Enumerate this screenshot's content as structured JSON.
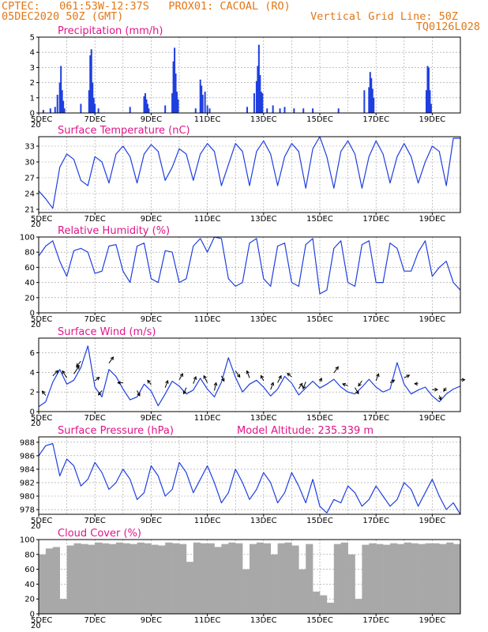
{
  "header": {
    "source_line": "CPTEC:   061:53W-12:37S   PROX01: CACOAL (RO)",
    "date_line": "05DEC2020 50Z (GMT)",
    "grid_note": "Vertical Grid Line: 50Z",
    "code": "TQ0126L028"
  },
  "colors": {
    "header": "#e07818",
    "title": "#e0168a",
    "series": "#1f3fe0",
    "cloud": "#a8a8a8",
    "grid": "#9a9a9a"
  },
  "x_axis": {
    "start_date": "05DEC",
    "end_date": "20DEC",
    "tick_labels": [
      "5DEC",
      "7DEC",
      "9DEC",
      "11DEC",
      "13DEC",
      "15DEC",
      "17DEC",
      "19DEC"
    ],
    "year_fragment": "20"
  },
  "chart_data": [
    {
      "id": "precip",
      "type": "bar",
      "title": "Precipitation (mm/h)",
      "ylim": [
        0,
        5
      ],
      "yticks": [
        "0",
        "1",
        "2",
        "3",
        "4",
        "5"
      ],
      "x": [
        "05DEC 04Z",
        "05DEC 10Z",
        "05DEC 14Z",
        "05DEC 16Z",
        "05DEC 18Z",
        "05DEC 19Z",
        "05DEC 20Z",
        "05DEC 21Z",
        "05DEC 22Z",
        "06DEC 12Z",
        "06DEC 19Z",
        "06DEC 20Z",
        "06DEC 21Z",
        "06DEC 22Z",
        "06DEC 23Z",
        "07DEC 00Z",
        "07DEC 03Z",
        "08DEC 06Z",
        "08DEC 18Z",
        "08DEC 19Z",
        "08DEC 20Z",
        "08DEC 21Z",
        "08DEC 22Z",
        "09DEC 12Z",
        "09DEC 18Z",
        "09DEC 19Z",
        "09DEC 20Z",
        "09DEC 21Z",
        "09DEC 22Z",
        "09DEC 23Z",
        "10DEC 14Z",
        "10DEC 18Z",
        "10DEC 19Z",
        "10DEC 20Z",
        "10DEC 22Z",
        "11DEC 00Z",
        "11DEC 02Z",
        "12DEC 10Z",
        "12DEC 16Z",
        "12DEC 18Z",
        "12DEC 19Z",
        "12DEC 20Z",
        "12DEC 21Z",
        "12DEC 22Z",
        "12DEC 23Z",
        "13DEC 03Z",
        "13DEC 08Z",
        "13DEC 14Z",
        "13DEC 18Z",
        "14DEC 02Z",
        "14DEC 10Z",
        "14DEC 18Z",
        "15DEC 16Z",
        "16DEC 14Z",
        "16DEC 18Z",
        "16DEC 19Z",
        "16DEC 20Z",
        "16DEC 21Z",
        "16DEC 22Z",
        "18DEC 19Z",
        "18DEC 20Z",
        "18DEC 21Z",
        "18DEC 22Z",
        "18DEC 23Z"
      ],
      "values": [
        0.2,
        0.3,
        0.4,
        1.2,
        2.0,
        3.1,
        1.5,
        0.8,
        0.3,
        0.6,
        1.5,
        3.8,
        4.2,
        2.0,
        1.0,
        0.6,
        0.3,
        0.4,
        1.1,
        1.3,
        0.9,
        0.6,
        0.3,
        0.5,
        1.3,
        3.4,
        4.3,
        2.6,
        1.4,
        0.9,
        0.3,
        2.2,
        1.8,
        1.2,
        1.4,
        0.5,
        0.3,
        0.4,
        1.3,
        2.1,
        3.1,
        4.5,
        2.5,
        1.4,
        1.3,
        0.3,
        0.5,
        0.3,
        0.4,
        0.3,
        0.3,
        0.3,
        0.3,
        1.5,
        1.7,
        2.7,
        2.3,
        1.6,
        1.0,
        1.5,
        3.1,
        3.0,
        1.5,
        0.6
      ]
    },
    {
      "id": "temp",
      "type": "line",
      "title": "Surface Temperature (nC)",
      "ylim": [
        20.4,
        34.8
      ],
      "yticks": [
        "21",
        "24",
        "27",
        "30",
        "33"
      ],
      "x": [
        "05DEC 00Z",
        "05DEC 06Z",
        "05DEC 12Z",
        "05DEC 18Z",
        "06DEC 00Z",
        "06DEC 06Z",
        "06DEC 12Z",
        "06DEC 18Z",
        "07DEC 00Z",
        "07DEC 06Z",
        "07DEC 12Z",
        "07DEC 18Z",
        "08DEC 00Z",
        "08DEC 06Z",
        "08DEC 12Z",
        "08DEC 18Z",
        "09DEC 00Z",
        "09DEC 06Z",
        "09DEC 12Z",
        "09DEC 18Z",
        "10DEC 00Z",
        "10DEC 06Z",
        "10DEC 12Z",
        "10DEC 18Z",
        "11DEC 00Z",
        "11DEC 06Z",
        "11DEC 12Z",
        "11DEC 18Z",
        "12DEC 00Z",
        "12DEC 06Z",
        "12DEC 12Z",
        "12DEC 18Z",
        "13DEC 00Z",
        "13DEC 06Z",
        "13DEC 12Z",
        "13DEC 18Z",
        "14DEC 00Z",
        "14DEC 06Z",
        "14DEC 12Z",
        "14DEC 18Z",
        "15DEC 00Z",
        "15DEC 06Z",
        "15DEC 12Z",
        "15DEC 18Z",
        "16DEC 00Z",
        "16DEC 06Z",
        "16DEC 12Z",
        "16DEC 18Z",
        "17DEC 00Z",
        "17DEC 06Z",
        "17DEC 12Z",
        "17DEC 18Z",
        "18DEC 00Z",
        "18DEC 06Z",
        "18DEC 12Z",
        "18DEC 18Z",
        "19DEC 00Z",
        "19DEC 06Z",
        "19DEC 12Z",
        "19DEC 18Z",
        "20DEC 00Z"
      ],
      "values": [
        24.5,
        23.0,
        21.2,
        29.0,
        31.5,
        30.5,
        26.5,
        25.5,
        31.0,
        30.0,
        26.0,
        31.5,
        33.0,
        31.0,
        26.0,
        31.5,
        33.3,
        32.0,
        26.5,
        29.0,
        32.5,
        31.5,
        26.5,
        31.5,
        33.5,
        32.0,
        25.5,
        29.5,
        33.5,
        32.0,
        25.5,
        32.0,
        34.0,
        31.5,
        25.5,
        31.0,
        33.5,
        32.0,
        25.0,
        32.5,
        35.0,
        31.0,
        25.0,
        32.0,
        34.0,
        31.5,
        25.0,
        31.0,
        34.0,
        31.5,
        26.0,
        31.0,
        33.5,
        31.0,
        26.0,
        30.0,
        33.0,
        32.0,
        25.5,
        34.5,
        34.5
      ]
    },
    {
      "id": "rh",
      "type": "line",
      "title": "Relative Humidity (%)",
      "ylim": [
        0,
        100
      ],
      "yticks": [
        "0",
        "20",
        "40",
        "60",
        "80",
        "100"
      ],
      "x": [
        "05DEC 00Z",
        "05DEC 06Z",
        "05DEC 12Z",
        "05DEC 18Z",
        "06DEC 00Z",
        "06DEC 06Z",
        "06DEC 12Z",
        "06DEC 18Z",
        "07DEC 00Z",
        "07DEC 06Z",
        "07DEC 12Z",
        "07DEC 18Z",
        "08DEC 00Z",
        "08DEC 06Z",
        "08DEC 12Z",
        "08DEC 18Z",
        "09DEC 00Z",
        "09DEC 06Z",
        "09DEC 12Z",
        "09DEC 18Z",
        "10DEC 00Z",
        "10DEC 06Z",
        "10DEC 12Z",
        "10DEC 18Z",
        "11DEC 00Z",
        "11DEC 06Z",
        "11DEC 12Z",
        "11DEC 18Z",
        "12DEC 00Z",
        "12DEC 06Z",
        "12DEC 12Z",
        "12DEC 18Z",
        "13DEC 00Z",
        "13DEC 06Z",
        "13DEC 12Z",
        "13DEC 18Z",
        "14DEC 00Z",
        "14DEC 06Z",
        "14DEC 12Z",
        "14DEC 18Z",
        "15DEC 00Z",
        "15DEC 06Z",
        "15DEC 12Z",
        "15DEC 18Z",
        "16DEC 00Z",
        "16DEC 06Z",
        "16DEC 12Z",
        "16DEC 18Z",
        "17DEC 00Z",
        "17DEC 06Z",
        "17DEC 12Z",
        "17DEC 18Z",
        "18DEC 00Z",
        "18DEC 06Z",
        "18DEC 12Z",
        "18DEC 18Z",
        "19DEC 00Z",
        "19DEC 06Z",
        "19DEC 12Z",
        "19DEC 18Z",
        "20DEC 00Z"
      ],
      "values": [
        75,
        88,
        95,
        68,
        48,
        82,
        85,
        80,
        52,
        55,
        88,
        90,
        55,
        40,
        88,
        92,
        45,
        40,
        82,
        80,
        40,
        45,
        88,
        98,
        80,
        100,
        98,
        45,
        35,
        40,
        92,
        98,
        45,
        35,
        88,
        92,
        40,
        35,
        90,
        98,
        25,
        30,
        85,
        95,
        40,
        35,
        90,
        95,
        40,
        40,
        92,
        85,
        55,
        55,
        80,
        95,
        48,
        60,
        68,
        40,
        30
      ]
    },
    {
      "id": "wind",
      "type": "line",
      "title": "Surface Wind (m/s)",
      "ylim": [
        0,
        7.5
      ],
      "yticks": [
        "0",
        "2",
        "4",
        "6"
      ],
      "x": [
        "05DEC 00Z",
        "05DEC 06Z",
        "05DEC 12Z",
        "05DEC 18Z",
        "06DEC 00Z",
        "06DEC 06Z",
        "06DEC 12Z",
        "06DEC 18Z",
        "07DEC 00Z",
        "07DEC 06Z",
        "07DEC 12Z",
        "07DEC 18Z",
        "08DEC 00Z",
        "08DEC 06Z",
        "08DEC 12Z",
        "08DEC 18Z",
        "09DEC 00Z",
        "09DEC 06Z",
        "09DEC 12Z",
        "09DEC 18Z",
        "10DEC 00Z",
        "10DEC 06Z",
        "10DEC 12Z",
        "10DEC 18Z",
        "11DEC 00Z",
        "11DEC 06Z",
        "11DEC 12Z",
        "11DEC 18Z",
        "12DEC 00Z",
        "12DEC 06Z",
        "12DEC 12Z",
        "12DEC 18Z",
        "13DEC 00Z",
        "13DEC 06Z",
        "13DEC 12Z",
        "13DEC 18Z",
        "14DEC 00Z",
        "14DEC 06Z",
        "14DEC 12Z",
        "14DEC 18Z",
        "15DEC 00Z",
        "15DEC 06Z",
        "15DEC 12Z",
        "15DEC 18Z",
        "16DEC 00Z",
        "16DEC 06Z",
        "16DEC 12Z",
        "16DEC 18Z",
        "17DEC 00Z",
        "17DEC 06Z",
        "17DEC 12Z",
        "17DEC 18Z",
        "18DEC 00Z",
        "18DEC 06Z",
        "18DEC 12Z",
        "18DEC 18Z",
        "19DEC 00Z",
        "19DEC 06Z",
        "19DEC 12Z",
        "19DEC 18Z",
        "20DEC 00Z"
      ],
      "values": [
        0.5,
        1.0,
        3.0,
        4.3,
        2.8,
        3.2,
        4.5,
        6.7,
        2.5,
        1.5,
        4.3,
        3.6,
        2.3,
        1.2,
        1.5,
        2.8,
        2.1,
        0.6,
        1.8,
        3.1,
        2.6,
        1.8,
        2.2,
        3.4,
        2.3,
        1.5,
        3.0,
        5.5,
        3.5,
        2.0,
        2.8,
        3.2,
        2.5,
        1.6,
        2.3,
        3.6,
        2.9,
        1.7,
        2.4,
        3.1,
        2.4,
        2.8,
        3.3,
        2.5,
        2.0,
        1.8,
        2.5,
        3.3,
        2.5,
        2.0,
        2.3,
        5.0,
        2.8,
        1.8,
        2.2,
        2.5,
        1.6,
        1.0,
        1.8,
        2.3,
        2.6
      ]
    },
    {
      "id": "pressure",
      "type": "line",
      "title": "Surface Pressure (hPa)",
      "ylim": [
        977.3,
        988.8
      ],
      "annotation": "Model Altitude: 235.339 m",
      "yticks": [
        "978",
        "980",
        "982",
        "984",
        "986",
        "988"
      ],
      "x": [
        "05DEC 00Z",
        "05DEC 06Z",
        "05DEC 12Z",
        "05DEC 18Z",
        "06DEC 00Z",
        "06DEC 06Z",
        "06DEC 12Z",
        "06DEC 18Z",
        "07DEC 00Z",
        "07DEC 06Z",
        "07DEC 12Z",
        "07DEC 18Z",
        "08DEC 00Z",
        "08DEC 06Z",
        "08DEC 12Z",
        "08DEC 18Z",
        "09DEC 00Z",
        "09DEC 06Z",
        "09DEC 12Z",
        "09DEC 18Z",
        "10DEC 00Z",
        "10DEC 06Z",
        "10DEC 12Z",
        "10DEC 18Z",
        "11DEC 00Z",
        "11DEC 06Z",
        "11DEC 12Z",
        "11DEC 18Z",
        "12DEC 00Z",
        "12DEC 06Z",
        "12DEC 12Z",
        "12DEC 18Z",
        "13DEC 00Z",
        "13DEC 06Z",
        "13DEC 12Z",
        "13DEC 18Z",
        "14DEC 00Z",
        "14DEC 06Z",
        "14DEC 12Z",
        "14DEC 18Z",
        "15DEC 00Z",
        "15DEC 06Z",
        "15DEC 12Z",
        "15DEC 18Z",
        "16DEC 00Z",
        "16DEC 06Z",
        "16DEC 12Z",
        "16DEC 18Z",
        "17DEC 00Z",
        "17DEC 06Z",
        "17DEC 12Z",
        "17DEC 18Z",
        "18DEC 00Z",
        "18DEC 06Z",
        "18DEC 12Z",
        "18DEC 18Z",
        "19DEC 00Z",
        "19DEC 06Z",
        "19DEC 12Z",
        "19DEC 18Z",
        "20DEC 00Z"
      ],
      "values": [
        986.0,
        987.5,
        987.8,
        983.0,
        985.5,
        984.5,
        981.5,
        982.5,
        985.0,
        983.5,
        981.0,
        982.0,
        984.0,
        982.5,
        979.5,
        980.5,
        984.5,
        983.0,
        980.0,
        981.0,
        985.0,
        983.5,
        980.5,
        982.5,
        984.5,
        982.0,
        979.0,
        980.5,
        984.0,
        982.0,
        979.5,
        981.0,
        983.5,
        982.0,
        979.0,
        980.5,
        983.5,
        981.5,
        979.0,
        982.5,
        978.5,
        977.5,
        979.5,
        979.0,
        981.5,
        980.5,
        978.5,
        979.5,
        981.5,
        980.0,
        978.5,
        979.5,
        982.0,
        981.0,
        978.5,
        980.5,
        982.5,
        980.0,
        978.0,
        979.0,
        976.8
      ]
    },
    {
      "id": "cloud",
      "type": "bar",
      "title": "Cloud Cover (%)",
      "ylim": [
        0,
        100
      ],
      "yticks": [
        "0",
        "20",
        "40",
        "60",
        "80",
        "100"
      ],
      "x": [
        "05DEC 00Z",
        "05DEC 06Z",
        "05DEC 12Z",
        "05DEC 18Z",
        "06DEC 00Z",
        "06DEC 06Z",
        "06DEC 12Z",
        "06DEC 18Z",
        "07DEC 00Z",
        "07DEC 06Z",
        "07DEC 12Z",
        "07DEC 18Z",
        "08DEC 00Z",
        "08DEC 06Z",
        "08DEC 12Z",
        "08DEC 18Z",
        "09DEC 00Z",
        "09DEC 06Z",
        "09DEC 12Z",
        "09DEC 18Z",
        "10DEC 00Z",
        "10DEC 06Z",
        "10DEC 12Z",
        "10DEC 18Z",
        "11DEC 00Z",
        "11DEC 06Z",
        "11DEC 12Z",
        "11DEC 18Z",
        "12DEC 00Z",
        "12DEC 06Z",
        "12DEC 12Z",
        "12DEC 18Z",
        "13DEC 00Z",
        "13DEC 06Z",
        "13DEC 12Z",
        "13DEC 18Z",
        "14DEC 00Z",
        "14DEC 06Z",
        "14DEC 12Z",
        "14DEC 18Z",
        "15DEC 00Z",
        "15DEC 06Z",
        "15DEC 12Z",
        "15DEC 18Z",
        "16DEC 00Z",
        "16DEC 06Z",
        "16DEC 12Z",
        "16DEC 18Z",
        "17DEC 00Z",
        "17DEC 06Z",
        "17DEC 12Z",
        "17DEC 18Z",
        "18DEC 00Z",
        "18DEC 06Z",
        "18DEC 12Z",
        "18DEC 18Z",
        "19DEC 00Z",
        "19DEC 06Z",
        "19DEC 12Z",
        "19DEC 18Z"
      ],
      "values": [
        80,
        88,
        90,
        20,
        92,
        95,
        94,
        93,
        96,
        95,
        94,
        96,
        95,
        94,
        96,
        95,
        93,
        92,
        96,
        95,
        94,
        70,
        96,
        95,
        95,
        90,
        94,
        96,
        95,
        60,
        94,
        96,
        95,
        80,
        95,
        96,
        92,
        60,
        94,
        30,
        25,
        15,
        94,
        96,
        80,
        20,
        93,
        95,
        94,
        93,
        95,
        94,
        96,
        95,
        94,
        95,
        95,
        94,
        96,
        94
      ]
    }
  ],
  "wind_vectors": {
    "x": [
      "05DEC 06Z",
      "05DEC 12Z",
      "06DEC 00Z",
      "06DEC 06Z",
      "06DEC 12Z",
      "07DEC 00Z",
      "07DEC 06Z",
      "07DEC 12Z",
      "08DEC 00Z",
      "08DEC 12Z",
      "09DEC 00Z",
      "09DEC 12Z",
      "10DEC 00Z",
      "10DEC 06Z",
      "10DEC 12Z",
      "11DEC 00Z",
      "11DEC 06Z",
      "11DEC 12Z",
      "12DEC 00Z",
      "12DEC 12Z",
      "13DEC 00Z",
      "13DEC 06Z",
      "13DEC 12Z",
      "14DEC 00Z",
      "14DEC 06Z",
      "14DEC 12Z",
      "15DEC 00Z",
      "15DEC 12Z",
      "16DEC 00Z",
      "16DEC 06Z",
      "16DEC 12Z",
      "17DEC 00Z",
      "17DEC 12Z",
      "18DEC 00Z",
      "18DEC 12Z",
      "19DEC 00Z",
      "19DEC 06Z",
      "19DEC 12Z",
      "20DEC 00Z"
    ],
    "u": [
      -0.4,
      0.6,
      -0.5,
      0.6,
      -0.5,
      0.5,
      -0.4,
      0.5,
      -0.6,
      0.3,
      -0.4,
      0.3,
      0.4,
      -0.3,
      0.3,
      -0.4,
      0.2,
      0.3,
      0.5,
      -0.3,
      -0.3,
      0.3,
      0.4,
      -0.5,
      0.4,
      -0.3,
      0.2,
      0.5,
      -0.6,
      0.4,
      -0.4,
      0.3,
      0.5,
      0.6,
      -0.4,
      0.6,
      0.2,
      -0.3,
      0.5
    ],
    "v": [
      0.5,
      0.6,
      0.8,
      0.9,
      -0.6,
      0.4,
      -0.5,
      0.7,
      0.0,
      -0.6,
      0.5,
      0.8,
      0.7,
      -0.7,
      0.8,
      0.8,
      0.9,
      -0.6,
      -0.7,
      0.8,
      0.6,
      0.8,
      0.8,
      0.4,
      0.6,
      -0.8,
      0.4,
      0.7,
      0.2,
      -0.7,
      -0.6,
      0.8,
      0.3,
      0.3,
      0.0,
      0.0,
      -0.5,
      -0.4,
      0.0
    ]
  }
}
